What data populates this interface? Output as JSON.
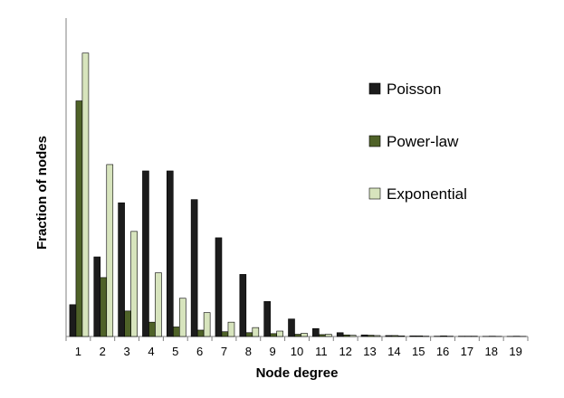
{
  "chart_data": {
    "type": "bar",
    "xlabel": "Node degree",
    "ylabel": "Fraction of nodes",
    "ylim": [
      0,
      1
    ],
    "grid": false,
    "y_ticks_shown": false,
    "legend_position": "right-upper",
    "categories": [
      "1",
      "2",
      "3",
      "4",
      "5",
      "6",
      "7",
      "8",
      "9",
      "10",
      "11",
      "12",
      "13",
      "14",
      "15",
      "16",
      "17",
      "18",
      "19"
    ],
    "series": [
      {
        "name": "Poisson",
        "color": "#1c1c1c",
        "values": [
          0.1,
          0.25,
          0.42,
          0.52,
          0.52,
          0.43,
          0.31,
          0.195,
          0.11,
          0.055,
          0.025,
          0.012,
          0.005,
          0.003,
          0.002,
          0.001,
          0.001,
          0.0005,
          0.0005
        ]
      },
      {
        "name": "Power-law",
        "color": "#4f6228",
        "values": [
          0.74,
          0.185,
          0.08,
          0.045,
          0.03,
          0.02,
          0.015,
          0.012,
          0.009,
          0.007,
          0.006,
          0.005,
          0.004,
          0.003,
          0.002,
          0.002,
          0.001,
          0.001,
          0.001
        ]
      },
      {
        "name": "Exponential",
        "color": "#d7e4bd",
        "values": [
          0.89,
          0.54,
          0.33,
          0.2,
          0.12,
          0.075,
          0.045,
          0.028,
          0.017,
          0.01,
          0.007,
          0.004,
          0.003,
          0.002,
          0.001,
          0.001,
          0.001,
          0.0005,
          0.0005
        ]
      }
    ]
  }
}
